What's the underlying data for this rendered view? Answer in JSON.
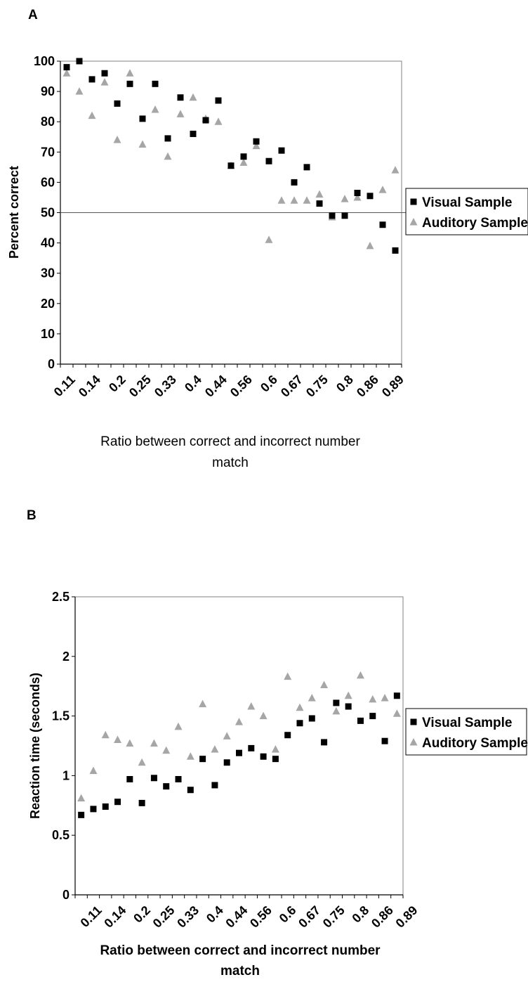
{
  "chart_data": [
    {
      "panel_label": "A",
      "type": "scatter",
      "xlabel": "Ratio between correct and incorrect number match",
      "ylabel": "Percent correct",
      "ylim": [
        0,
        100
      ],
      "yticks": [
        0,
        10,
        20,
        30,
        40,
        50,
        60,
        70,
        80,
        90,
        100
      ],
      "xtick_labels": [
        "0.11",
        "0.14",
        "0.2",
        "0.25",
        "0.33",
        "0.4",
        "0.44",
        "0.56",
        "0.6",
        "0.67",
        "0.75",
        "0.8",
        "0.86",
        "0.89"
      ],
      "num_conditions": 27,
      "reference_line_y": 50,
      "grid": false,
      "legend_position": "right",
      "series": [
        {
          "name": "Visual Sample",
          "marker": "square",
          "color": "#000000",
          "values": [
            98,
            100,
            94,
            96,
            86,
            92.5,
            81,
            92.5,
            74.5,
            88,
            76,
            80.5,
            87,
            65.5,
            68.5,
            73.5,
            67,
            70.5,
            60,
            65,
            53,
            49,
            49,
            56.5,
            55.5,
            46,
            37.5
          ]
        },
        {
          "name": "Auditory Sample",
          "marker": "triangle",
          "color": "#a6a6a6",
          "values": [
            96,
            90,
            82,
            93,
            74,
            96,
            72.5,
            84,
            68.5,
            82.5,
            88,
            81,
            80,
            65.5,
            66.5,
            72,
            41,
            54,
            54,
            54,
            56,
            48.5,
            54.5,
            55,
            39,
            57.5,
            64
          ]
        }
      ]
    },
    {
      "panel_label": "B",
      "type": "scatter",
      "xlabel": "Ratio between correct and incorrect number match",
      "ylabel": "Reaction time (seconds)",
      "ylim": [
        0,
        2.5
      ],
      "yticks": [
        0,
        0.5,
        1,
        1.5,
        2,
        2.5
      ],
      "xtick_labels": [
        "0.11",
        "0.14",
        "0.2",
        "0.25",
        "0.33",
        "0.4",
        "0.44",
        "0.56",
        "0.6",
        "0.67",
        "0.75",
        "0.8",
        "0.86",
        "0.89"
      ],
      "num_conditions": 27,
      "grid": false,
      "legend_position": "right",
      "series": [
        {
          "name": "Visual Sample",
          "marker": "square",
          "color": "#000000",
          "values": [
            0.67,
            0.72,
            0.74,
            0.78,
            0.97,
            0.77,
            0.98,
            0.91,
            0.97,
            0.88,
            1.14,
            0.92,
            1.11,
            1.19,
            1.23,
            1.16,
            1.14,
            1.34,
            1.44,
            1.48,
            1.28,
            1.61,
            1.58,
            1.46,
            1.5,
            1.29,
            1.67
          ]
        },
        {
          "name": "Auditory Sample",
          "marker": "triangle",
          "color": "#a6a6a6",
          "values": [
            0.81,
            1.04,
            1.34,
            1.3,
            1.27,
            1.11,
            1.27,
            1.21,
            1.41,
            1.16,
            1.6,
            1.22,
            1.33,
            1.45,
            1.58,
            1.5,
            1.22,
            1.83,
            1.57,
            1.65,
            1.76,
            1.54,
            1.67,
            1.84,
            1.64,
            1.65,
            1.52
          ]
        }
      ]
    }
  ]
}
